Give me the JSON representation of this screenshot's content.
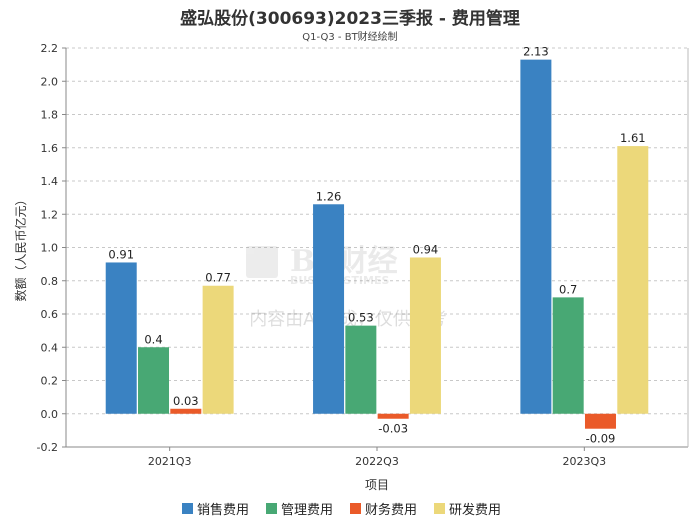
{
  "title": "盛弘股份(300693)2023三季报 - 费用管理",
  "subtitle": "Q1-Q3 - BT财经绘制",
  "watermark": {
    "logo_text": "BT财经",
    "logo_sub": "BUSINESSTIMES",
    "notice": "内容由AI生成，仅供参考"
  },
  "chart_data": {
    "type": "bar",
    "categories": [
      "2021Q3",
      "2022Q3",
      "2023Q3"
    ],
    "series": [
      {
        "name": "销售费用",
        "color": "#3a82c2",
        "values": [
          0.91,
          1.26,
          2.13
        ],
        "labels": [
          "0.91",
          "1.26",
          "2.13"
        ]
      },
      {
        "name": "管理费用",
        "color": "#48a874",
        "values": [
          0.4,
          0.53,
          0.7
        ],
        "labels": [
          "0.4",
          "0.53",
          "0.7"
        ]
      },
      {
        "name": "财务费用",
        "color": "#ea5a29",
        "values": [
          0.03,
          -0.03,
          -0.09
        ],
        "labels": [
          "0.03",
          "-0.03",
          "-0.09"
        ]
      },
      {
        "name": "研发费用",
        "color": "#ecd87a",
        "values": [
          0.77,
          0.94,
          1.61
        ],
        "labels": [
          "0.77",
          "0.94",
          "1.61"
        ]
      }
    ],
    "xlabel": "项目",
    "ylabel": "数额（人民币亿元）",
    "ylim": [
      -0.2,
      2.2
    ],
    "yticks": [
      "-0.2",
      "0.0",
      "0.2",
      "0.4",
      "0.6",
      "0.8",
      "1.0",
      "1.2",
      "1.4",
      "1.6",
      "1.8",
      "2.0",
      "2.2"
    ],
    "grid": true,
    "legend_position": "bottom"
  }
}
